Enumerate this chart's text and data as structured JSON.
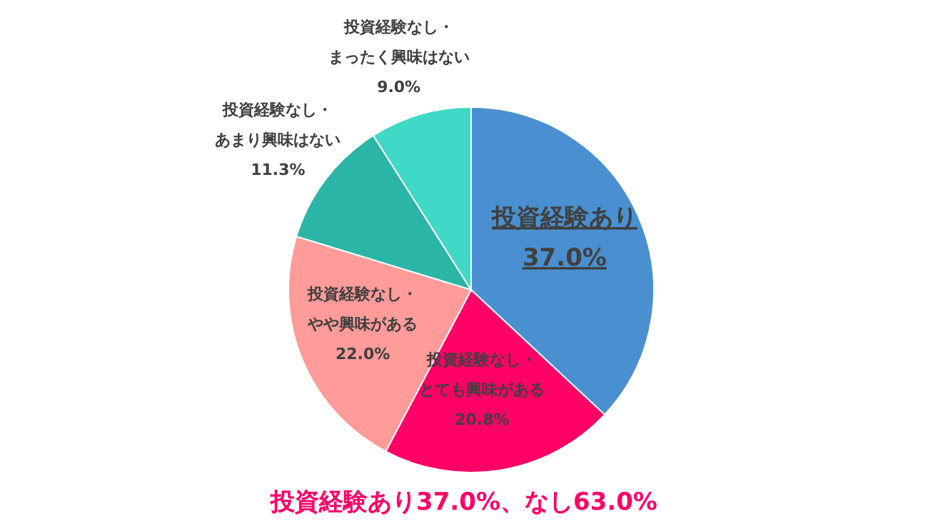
{
  "chart_data": {
    "type": "pie",
    "categories": [
      "投資経験あり",
      "投資経験なし・とても興味がある",
      "投資経験なし・やや興味がある",
      "投資経験なし・あまり興味はない",
      "投資経験なし・まったく興味はない"
    ],
    "values": [
      37.0,
      20.8,
      22.0,
      11.3,
      9.0
    ],
    "colors": [
      "#4a90d0",
      "#ff0066",
      "#ff9b98",
      "#2bb5a6",
      "#40d8c6"
    ],
    "value_labels": [
      "37.0%",
      "20.8%",
      "22.0%",
      "11.3%",
      "9.0%"
    ],
    "annotations": [
      "投資経験あり37.0%、なし63.0%"
    ],
    "legend": false
  }
}
